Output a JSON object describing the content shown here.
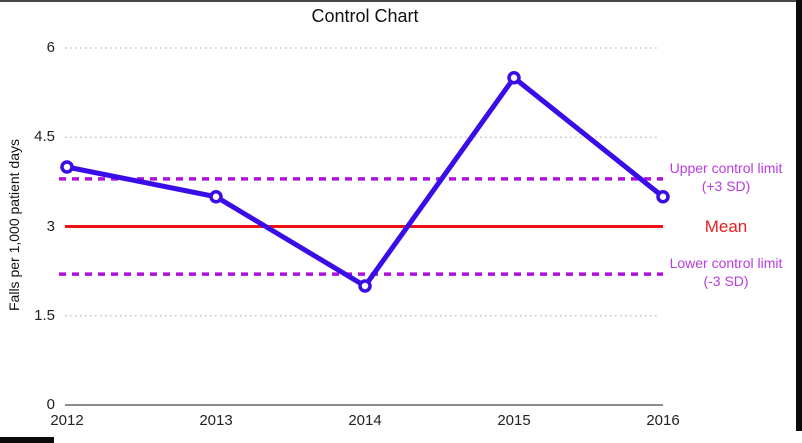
{
  "chart_data": {
    "type": "line",
    "title": "Control Chart",
    "ylabel": "Falls per 1,000 patient days",
    "xlabel": "",
    "categories": [
      "2012",
      "2013",
      "2014",
      "2015",
      "2016"
    ],
    "series": [
      {
        "name": "Falls per 1,000 patient days",
        "values": [
          4.0,
          3.5,
          2.0,
          5.5,
          3.5
        ]
      }
    ],
    "mean": 3,
    "upper_control_limit": 3.8,
    "lower_control_limit": 2.2,
    "ylim": [
      0,
      6
    ],
    "yticks": [
      0,
      1.5,
      3,
      4.5,
      6
    ],
    "ytick_labels": [
      "0",
      "1.5",
      "3",
      "4.5",
      "6"
    ],
    "grid": "dotted horizontal gridlines at y ticks",
    "legend_position": "right-margin annotations",
    "annotations": {
      "upper": {
        "line1": "Upper control limit",
        "line2": "(+3 SD)"
      },
      "mean": "Mean",
      "lower": {
        "line1": "Lower control limit",
        "line2": "(-3 SD)"
      }
    },
    "colors": {
      "series_line": "#3a0ce8",
      "marker_fill": "#ffffff",
      "control_limit_line": "#b012dc",
      "control_limit_text": "#bb3ce2",
      "mean_line": "#ee1212",
      "mean_text": "#e42020",
      "grid": "#bdbdbd",
      "axis": "#8c8c8c",
      "text": "#1a1a1a"
    }
  }
}
